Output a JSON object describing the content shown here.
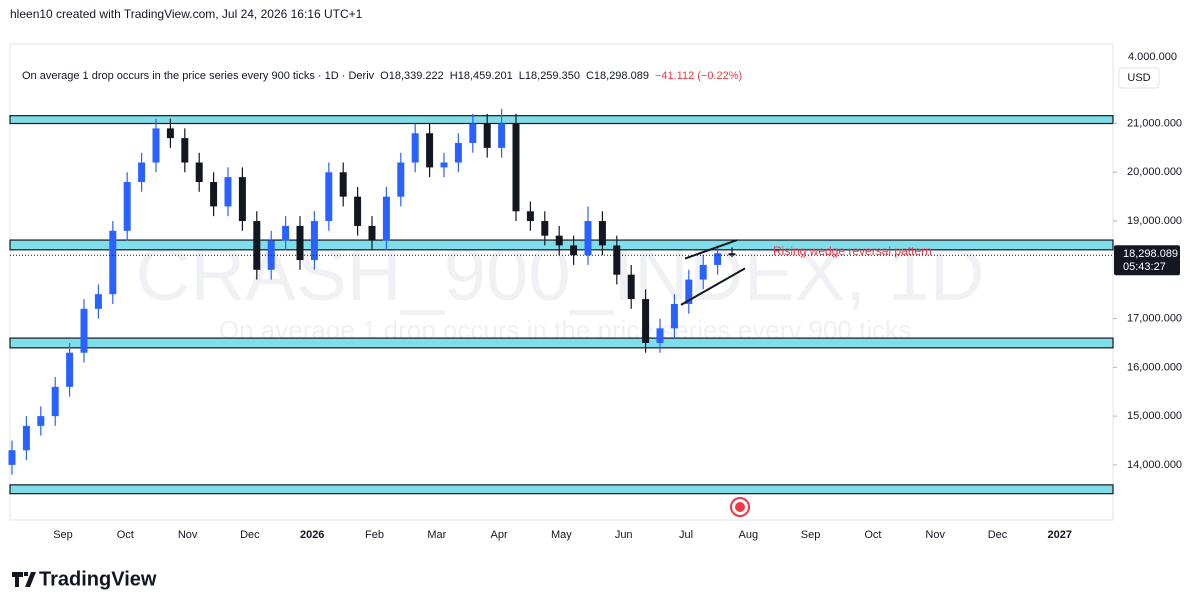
{
  "header": "hleen10 created with TradingView.com, Jul 24, 2026 16:16 UTC+1",
  "brand": "TradingView",
  "chart_data": {
    "type": "candlestick",
    "legend_title": "On average 1 drop occurs in the price series every 900 ticks · 1D · Deriv",
    "legend_values": [
      {
        "value": 18339.222,
        "label": "O18,339.222"
      },
      {
        "value": 18459.201,
        "label": "H18,459.201"
      },
      {
        "value": 18259.35,
        "label": "L18,259.350"
      },
      {
        "value": 18298.089,
        "label": "C18,298.089"
      },
      {
        "value": -41.112,
        "label": "−41.112 (−0.22%)"
      }
    ],
    "watermark": "CRASH_900_INDEX, 1D",
    "watermark_subtitle": "On average 1 drop occurs in the price series every 900 ticks",
    "currency": "USD",
    "scale_label": "4.000.000",
    "annotation": "Rising wedge reversal pattern",
    "last_price": {
      "value": 18298.089,
      "label": "18,298.089"
    },
    "countdown": "05:43:27",
    "x_labels": [
      "Sep",
      "Oct",
      "Nov",
      "Dec",
      "2026",
      "Feb",
      "Mar",
      "Apr",
      "May",
      "Jun",
      "Jul",
      "Aug",
      "Sep",
      "Oct",
      "Nov",
      "Dec",
      "2027"
    ],
    "open": [
      14000,
      14300,
      14800,
      15000,
      15600,
      16300,
      17200,
      17500,
      18800,
      19800,
      20200,
      20900,
      20700,
      20200,
      19800,
      19300,
      19900,
      19000,
      18000,
      18600,
      18900,
      18200,
      19000,
      20000,
      19500,
      18900,
      18600,
      19500,
      20200,
      20800,
      20100,
      20200,
      20600,
      21000,
      20500,
      21000,
      19200,
      19000,
      18700,
      18500,
      18300,
      19000,
      18500,
      17900,
      17400,
      16500,
      16800,
      17300,
      17800,
      18100,
      18339.222
    ],
    "high": [
      14500,
      15000,
      15200,
      15800,
      16500,
      17400,
      17700,
      19000,
      20000,
      20400,
      21100,
      21100,
      20900,
      20400,
      20000,
      20100,
      20100,
      19200,
      18800,
      19100,
      19100,
      19200,
      20200,
      20200,
      19700,
      19100,
      19700,
      20400,
      21000,
      21000,
      20400,
      20800,
      21200,
      21200,
      21300,
      21200,
      19400,
      19200,
      18900,
      18700,
      19300,
      19200,
      18700,
      18100,
      17600,
      17000,
      17500,
      18000,
      18300,
      18500,
      18459.201
    ],
    "low": [
      13800,
      14100,
      14600,
      14800,
      15400,
      16100,
      17000,
      17300,
      18600,
      19600,
      20000,
      20500,
      20000,
      19600,
      19100,
      19100,
      18800,
      17800,
      17800,
      18400,
      18000,
      18000,
      18800,
      19300,
      18700,
      18400,
      18400,
      19300,
      20000,
      19900,
      19900,
      20000,
      20400,
      20300,
      20300,
      19000,
      18800,
      18500,
      18300,
      18100,
      18100,
      18300,
      17700,
      17200,
      16300,
      16300,
      16600,
      17100,
      17600,
      17900,
      18259.35
    ],
    "close": [
      14300,
      14800,
      15000,
      15600,
      16300,
      17200,
      17500,
      18800,
      19800,
      20200,
      20900,
      20700,
      20200,
      19800,
      19300,
      19900,
      19000,
      18000,
      18600,
      18900,
      18200,
      19000,
      20000,
      19500,
      18900,
      18600,
      19500,
      20200,
      20800,
      20100,
      20200,
      20600,
      21000,
      20500,
      21000,
      19200,
      19000,
      18700,
      18500,
      18300,
      19000,
      18500,
      17900,
      17400,
      16500,
      16800,
      17300,
      17800,
      18100,
      18339.222,
      18298.089
    ],
    "up_color": "#2962ff",
    "down_color": "#131722",
    "zones": [
      {
        "top": 21160,
        "bottom": 21000
      },
      {
        "top": 18610,
        "bottom": 18410
      },
      {
        "top": 16600,
        "bottom": 16400
      },
      {
        "top": 13590,
        "bottom": 13410
      }
    ],
    "zone_color": "#80deea",
    "wedge": {
      "upper": [
        18230,
        18610
      ],
      "lower": [
        17280,
        18030
      ]
    },
    "ylim": [
      12870,
      22630
    ],
    "yticks": [
      {
        "value": 21000,
        "label": "21,000.000"
      },
      {
        "value": 20000,
        "label": "20,000.000"
      },
      {
        "value": 19000,
        "label": "19,000.000"
      },
      {
        "value": 17000,
        "label": "17,000.000"
      },
      {
        "value": 16000,
        "label": "16,000.000"
      },
      {
        "value": 15000,
        "label": "15,000.000"
      },
      {
        "value": 14000,
        "label": "14,000.000"
      }
    ],
    "grid": false
  }
}
